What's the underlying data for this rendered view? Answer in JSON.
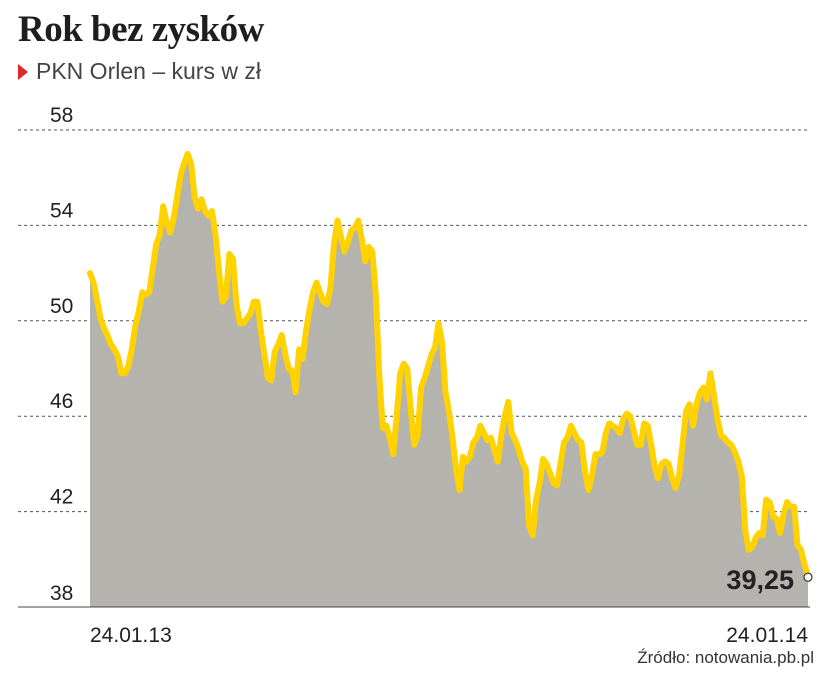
{
  "header": {
    "title": "Rok bez zysków",
    "subtitle": "PKN Orlen – kurs w zł"
  },
  "footer": {
    "source": "Źródło: notowania.pb.pl"
  },
  "colors": {
    "line": "#ffd200",
    "area": "#b5b3ad",
    "grid": "#555555",
    "marker": "#e0262e"
  },
  "chart_data": {
    "type": "area",
    "title": "Rok bez zysków",
    "subtitle": "PKN Orlen – kurs w zł",
    "ylim": [
      38,
      58
    ],
    "yticks": [
      "58",
      "54",
      "50",
      "46",
      "42",
      "38"
    ],
    "ytick_values": [
      58,
      54,
      50,
      46,
      42,
      38
    ],
    "xtick_labels": [
      "24.01.13",
      "24.01.14"
    ],
    "grid": true,
    "last_value_label": "39,25",
    "series": [
      {
        "values": [
          52.0,
          51.6,
          50.9,
          50.1,
          49.7,
          49.4,
          49.0,
          48.8,
          48.5,
          47.8,
          47.8,
          48.1,
          48.8,
          49.8,
          50.4,
          51.2,
          51.1,
          51.2,
          52.2,
          53.2,
          53.6,
          54.8,
          54.1,
          53.7,
          54.3,
          55.2,
          56.1,
          56.6,
          57.0,
          56.6,
          55.2,
          54.7,
          55.1,
          54.6,
          54.4,
          54.6,
          53.6,
          52.1,
          50.8,
          51.0,
          52.8,
          52.6,
          50.7,
          49.9,
          49.9,
          50.1,
          50.3,
          50.8,
          50.8,
          49.6,
          48.6,
          47.6,
          47.5,
          48.7,
          49.0,
          49.4,
          48.6,
          48.0,
          47.9,
          47.0,
          48.8,
          48.4,
          49.6,
          50.5,
          51.2,
          51.6,
          51.2,
          50.8,
          50.7,
          51.4,
          53.2,
          54.2,
          53.5,
          52.9,
          53.3,
          53.8,
          53.9,
          54.2,
          53.4,
          52.5,
          53.1,
          52.9,
          51.1,
          47.7,
          45.5,
          45.6,
          45.1,
          44.4,
          46.0,
          47.8,
          48.2,
          48.0,
          46.3,
          44.8,
          45.2,
          47.2,
          47.6,
          48.1,
          48.6,
          48.9,
          49.9,
          49.1,
          47.0,
          46.2,
          45.1,
          43.8,
          42.9,
          44.3,
          44.1,
          44.3,
          44.9,
          45.1,
          45.6,
          45.3,
          45.0,
          45.1,
          44.6,
          44.1,
          45.2,
          46.0,
          46.6,
          45.3,
          45.0,
          44.6,
          44.1,
          43.8,
          41.4,
          41.0,
          42.5,
          43.2,
          44.2,
          44.0,
          43.6,
          43.2,
          43.1,
          44.0,
          44.9,
          45.1,
          45.6,
          45.3,
          45.0,
          44.9,
          43.7,
          42.9,
          43.5,
          44.4,
          44.4,
          44.5,
          45.3,
          45.7,
          45.6,
          45.5,
          45.3,
          45.9,
          46.1,
          46.0,
          45.4,
          44.8,
          44.8,
          45.7,
          45.6,
          44.8,
          43.9,
          43.4,
          44.0,
          44.1,
          44.0,
          43.4,
          43.0,
          43.5,
          44.8,
          46.2,
          46.5,
          45.6,
          46.5,
          47.0,
          47.2,
          46.7,
          47.8,
          46.9,
          45.9,
          45.2,
          45.1,
          44.9,
          44.8,
          44.5,
          44.1,
          43.5,
          41.2,
          40.4,
          40.5,
          40.9,
          41.1,
          41.0,
          42.5,
          42.4,
          41.8,
          41.7,
          41.1,
          41.9,
          42.4,
          42.2,
          42.2,
          40.6,
          40.4,
          39.8,
          39.25
        ]
      }
    ]
  }
}
